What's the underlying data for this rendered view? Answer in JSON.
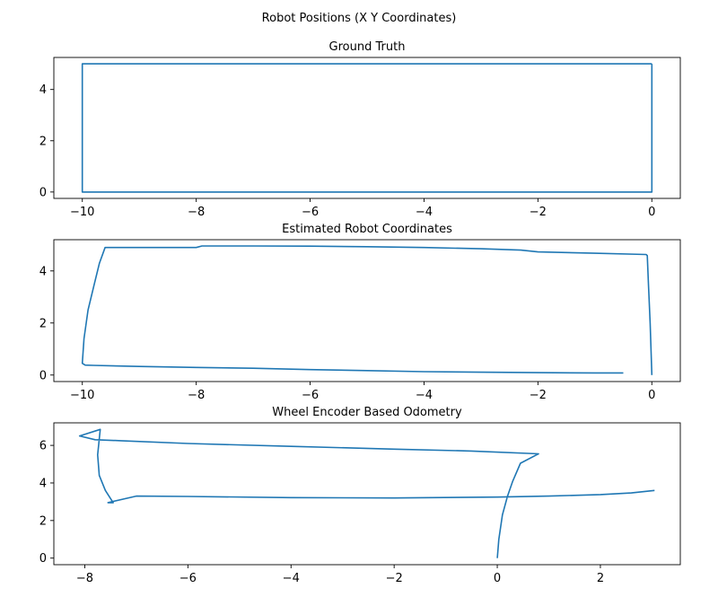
{
  "figure": {
    "suptitle": "Robot Positions (X Y Coordinates)",
    "line_color": "#1f77b4"
  },
  "chart_data": [
    {
      "type": "line",
      "title": "Ground Truth",
      "xlabel": "",
      "ylabel": "",
      "xlim": [
        -10.5,
        0.5
      ],
      "ylim": [
        -0.25,
        5.25
      ],
      "xticks": [
        -10,
        -8,
        -6,
        -4,
        -2,
        0
      ],
      "yticks": [
        0,
        2,
        4
      ],
      "grid": false,
      "series": [
        {
          "x": [
            0,
            -10,
            -10,
            0,
            0
          ],
          "y": [
            5,
            5,
            0,
            0,
            5
          ]
        }
      ]
    },
    {
      "type": "line",
      "title": "Estimated Robot Coordinates",
      "xlabel": "",
      "ylabel": "",
      "xlim": [
        -10.5,
        0.5
      ],
      "ylim": [
        -0.25,
        5.2
      ],
      "xticks": [
        -10,
        -8,
        -6,
        -4,
        -2,
        0
      ],
      "yticks": [
        0,
        2,
        4
      ],
      "grid": false,
      "series": [
        {
          "x": [
            -0.5,
            -1,
            -2,
            -3,
            -4,
            -5,
            -6,
            -7,
            -8,
            -9,
            -9.8,
            -9.95,
            -10,
            -9.97,
            -9.9,
            -9.8,
            -9.7,
            -9.6,
            -8,
            -7.9,
            -7,
            -6,
            -5,
            -4,
            -3,
            -2.3,
            -2,
            -1,
            -0.1,
            -0.08,
            -0.06,
            -0.03,
            0
          ],
          "y": [
            0.08,
            0.08,
            0.09,
            0.11,
            0.13,
            0.17,
            0.21,
            0.26,
            0.29,
            0.33,
            0.37,
            0.38,
            0.45,
            1.4,
            2.5,
            3.4,
            4.3,
            4.9,
            4.9,
            4.96,
            4.96,
            4.95,
            4.93,
            4.9,
            4.85,
            4.8,
            4.73,
            4.68,
            4.63,
            4.59,
            3.5,
            2.0,
            0
          ]
        }
      ]
    },
    {
      "type": "line",
      "title": "Wheel Encoder Based Odometry",
      "xlabel": "",
      "ylabel": "",
      "xlim": [
        -8.6,
        3.55
      ],
      "ylim": [
        -0.35,
        7.2
      ],
      "xticks": [
        -8,
        -6,
        -4,
        -2,
        0,
        2
      ],
      "yticks": [
        0,
        2,
        4,
        6
      ],
      "grid": false,
      "series": [
        {
          "x": [
            0,
            0.03,
            0.1,
            0.2,
            0.3,
            0.45,
            0.8,
            -0.5,
            -2,
            -4,
            -6,
            -7.3,
            -7.8,
            -8.1,
            -7.7,
            -7.75,
            -7.72,
            -7.6,
            -7.45,
            -7.55,
            -7.0,
            -6,
            -4,
            -2,
            0,
            1,
            2,
            2.6,
            3.05
          ],
          "y": [
            0,
            1.0,
            2.3,
            3.3,
            4.1,
            5.05,
            5.55,
            5.7,
            5.8,
            5.95,
            6.1,
            6.25,
            6.3,
            6.5,
            6.85,
            5.5,
            4.4,
            3.6,
            2.95,
            2.95,
            3.3,
            3.28,
            3.22,
            3.2,
            3.25,
            3.3,
            3.38,
            3.47,
            3.6
          ]
        }
      ]
    }
  ]
}
